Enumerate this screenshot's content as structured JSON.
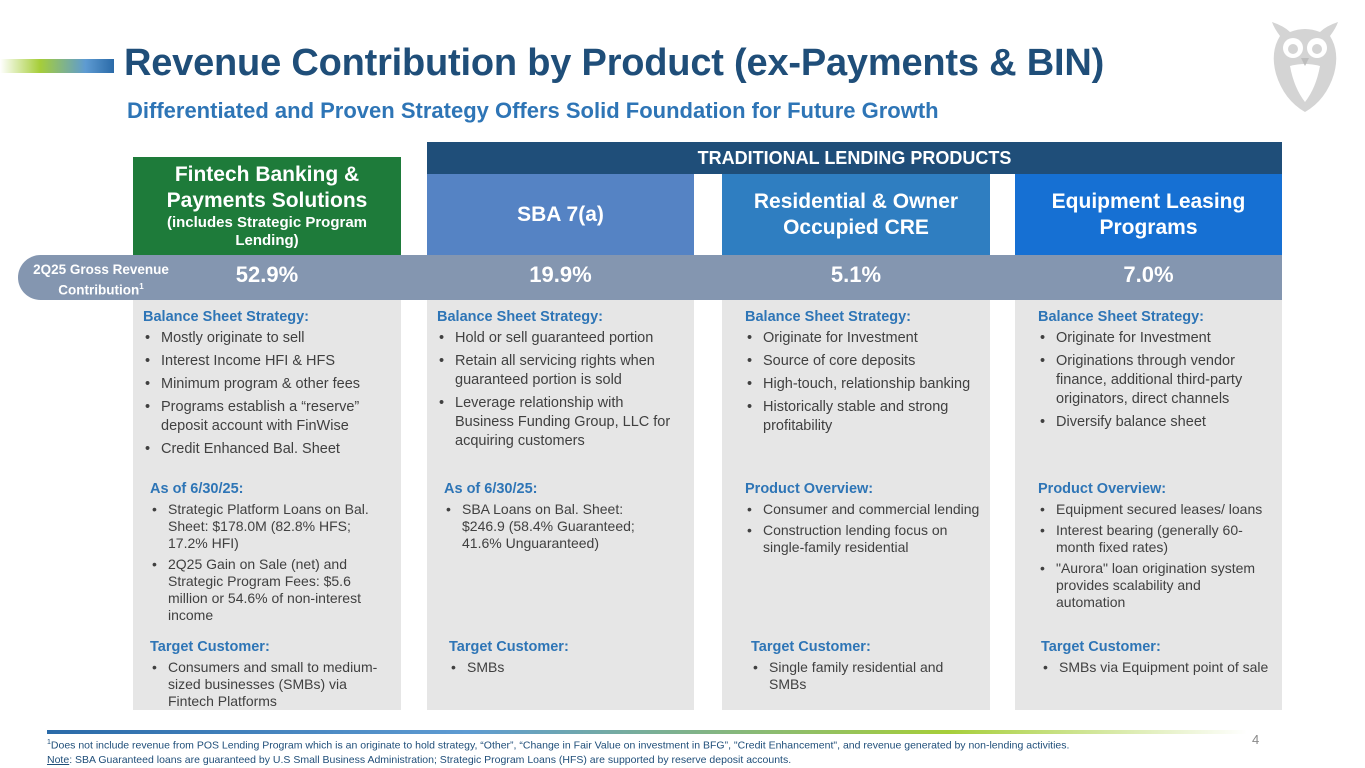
{
  "header": {
    "title": "Revenue Contribution by Product (ex-Payments & BIN)",
    "subtitle": "Differentiated and Proven Strategy Offers Solid Foundation for Future Growth",
    "logo_icon": "owl-logo-icon"
  },
  "traditional_header": "TRADITIONAL LENDING PRODUCTS",
  "revenue_row": {
    "label": "2Q25 Gross Revenue Contribution",
    "label_line1": "2Q25 Gross Revenue",
    "label_line2": "Contribution",
    "label_sup": "1"
  },
  "columns": [
    {
      "name": "Fintech Banking & Payments Solutions",
      "name_line1": "Fintech Banking &",
      "name_line2": "Payments Solutions",
      "note": "(includes Strategic Program Lending)",
      "color": "#1e7b3a",
      "revenue": "52.9%",
      "sections": [
        {
          "title": "Balance Sheet Strategy:",
          "items": [
            "Mostly originate to sell",
            "Interest Income HFI & HFS",
            "Minimum program & other fees",
            "Programs establish a “reserve” deposit account with FinWise",
            "Credit Enhanced Bal. Sheet"
          ]
        },
        {
          "title": "As of 6/30/25:",
          "items": [
            "Strategic Platform Loans on Bal. Sheet: $178.0M (82.8% HFS; 17.2% HFI)",
            "2Q25 Gain on Sale (net) and Strategic Program Fees: $5.6 million or 54.6% of non-interest income"
          ]
        },
        {
          "title": "Target Customer:",
          "items": [
            "Consumers and small to medium-sized businesses (SMBs) via Fintech Platforms"
          ]
        }
      ]
    },
    {
      "name": "SBA 7(a)",
      "color": "#5583c4",
      "revenue": "19.9%",
      "sections": [
        {
          "title": "Balance Sheet Strategy:",
          "items": [
            "Hold or sell guaranteed portion",
            "Retain all servicing rights when guaranteed portion is sold",
            "Leverage relationship with Business Funding Group, LLC for acquiring customers"
          ]
        },
        {
          "title": "As of 6/30/25:",
          "items": [
            "SBA Loans on Bal. Sheet: $246.9 (58.4% Guaranteed; 41.6% Unguaranteed)"
          ]
        },
        {
          "title": "Target Customer:",
          "items": [
            "SMBs"
          ]
        }
      ]
    },
    {
      "name": "Residential & Owner Occupied CRE",
      "name_line1": "Residential & Owner",
      "name_line2": "Occupied CRE",
      "color": "#2f7ec1",
      "revenue": "5.1%",
      "sections": [
        {
          "title": "Balance Sheet Strategy:",
          "items": [
            "Originate for Investment",
            "Source of core deposits",
            "High-touch, relationship banking",
            "Historically stable and strong profitability"
          ]
        },
        {
          "title": "Product Overview:",
          "items": [
            "Consumer and commercial lending",
            "Construction lending focus on single-family residential"
          ]
        },
        {
          "title": "Target Customer:",
          "items": [
            "Single family residential and SMBs"
          ]
        }
      ]
    },
    {
      "name": "Equipment Leasing Programs",
      "name_line1": "Equipment Leasing",
      "name_line2": "Programs",
      "color": "#1670d3",
      "revenue": "7.0%",
      "sections": [
        {
          "title": "Balance Sheet Strategy:",
          "items": [
            "Originate for Investment",
            "Originations through vendor finance, additional third-party originators, direct channels",
            "Diversify balance sheet"
          ]
        },
        {
          "title": "Product Overview:",
          "items": [
            "Equipment secured leases/ loans",
            "Interest bearing (generally 60-month fixed rates)",
            "\"Aurora\" loan origination system provides scalability and automation"
          ]
        },
        {
          "title": "Target Customer:",
          "items": [
            "SMBs via Equipment point of sale"
          ]
        }
      ]
    }
  ],
  "footnotes": {
    "sup": "1",
    "line1": "Does not include revenue from POS Lending Program which is an originate to hold strategy, “Other”, “Change in Fair Value on investment in BFG”, \"Credit Enhancement\", and revenue generated by non-lending activities.",
    "note_label": "Note",
    "line2": ": SBA Guaranteed loans are guaranteed by U.S Small Business Administration; Strategic Program Loans (HFS) are supported by reserve deposit accounts."
  },
  "page_number": "4"
}
